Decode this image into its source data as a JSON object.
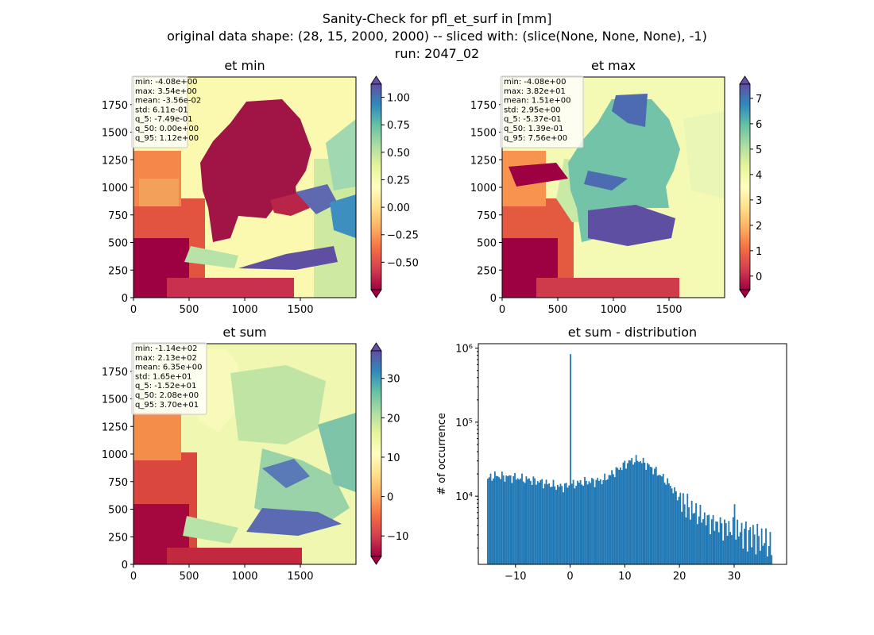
{
  "figure": {
    "title_lines": [
      "Sanity-Check for pfl_et_surf in [mm]",
      "original data shape: (28, 15, 2000, 2000) -- sliced with: (slice(None, None, None), -1)",
      "run: 2047_02"
    ]
  },
  "chart_data": [
    {
      "type": "heatmap",
      "title": "et min",
      "xlim": [
        0,
        2000
      ],
      "ylim": [
        0,
        2000
      ],
      "x_ticks": [
        "0",
        "500",
        "1000",
        "1500"
      ],
      "y_ticks": [
        "0",
        "250",
        "500",
        "750",
        "1000",
        "1250",
        "1500",
        "1750"
      ],
      "colormap": "Spectral",
      "colorbar_range": [
        -0.75,
        1.12
      ],
      "colorbar_ticks": [
        "−0.50",
        "−0.25",
        "0.00",
        "0.25",
        "0.50",
        "0.75",
        "1.00"
      ],
      "stats": [
        "min: -4.08e+00",
        "max: 3.54e+00",
        "mean: -3.56e-02",
        "std: 6.11e-01",
        "q_5: -7.49e-01",
        "q_50: 0.00e+00",
        "q_95: 1.12e+00"
      ]
    },
    {
      "type": "heatmap",
      "title": "et max",
      "xlim": [
        0,
        2000
      ],
      "ylim": [
        0,
        2000
      ],
      "x_ticks": [
        "0",
        "500",
        "1000",
        "1500"
      ],
      "y_ticks": [
        "0",
        "250",
        "500",
        "750",
        "1000",
        "1250",
        "1500",
        "1750"
      ],
      "colormap": "Spectral",
      "colorbar_range": [
        -0.537,
        7.56
      ],
      "colorbar_ticks": [
        "0",
        "1",
        "2",
        "3",
        "4",
        "5",
        "6",
        "7"
      ],
      "stats": [
        "min: -4.08e+00",
        "max: 3.82e+01",
        "mean: 1.51e+00",
        "std: 2.95e+00",
        "q_5: -5.37e-01",
        "q_50: 1.39e-01",
        "q_95: 7.56e+00"
      ]
    },
    {
      "type": "heatmap",
      "title": "et sum",
      "xlim": [
        0,
        2000
      ],
      "ylim": [
        0,
        2000
      ],
      "x_ticks": [
        "0",
        "500",
        "1000",
        "1500"
      ],
      "y_ticks": [
        "0",
        "250",
        "500",
        "750",
        "1000",
        "1250",
        "1500",
        "1750"
      ],
      "colormap": "Spectral",
      "colorbar_range": [
        -15.2,
        37.0
      ],
      "colorbar_ticks": [
        "−10",
        "0",
        "10",
        "20",
        "30"
      ],
      "stats": [
        "min: -1.14e+02",
        "max: 2.13e+02",
        "mean: 6.35e+00",
        "std: 1.65e+01",
        "q_5: -1.52e+01",
        "q_50: 2.08e+00",
        "q_95: 3.70e+01"
      ]
    },
    {
      "type": "bar",
      "title": "et sum - distribution",
      "ylabel": "# of occurrence",
      "yscale": "log",
      "xlim": [
        -16.8,
        39.6
      ],
      "ylim": [
        1200,
        1150000
      ],
      "x_ticks": [
        -10,
        0,
        10,
        20,
        30
      ],
      "x_tick_labels": [
        "−10",
        "0",
        "10",
        "20",
        "30"
      ],
      "y_ticks": [
        10000,
        100000,
        1000000
      ],
      "y_tick_labels": [
        "10⁴",
        "10⁵",
        "10⁶"
      ],
      "bar_color": "#1f77b4",
      "bin_range": [
        -15.2,
        37.0
      ],
      "bins": 200,
      "profile_x": [
        -15.2,
        -14,
        -10,
        -6,
        -2,
        0,
        2,
        6,
        8,
        10,
        11,
        12,
        13,
        14,
        16,
        18,
        20,
        22,
        24,
        26,
        28,
        30,
        32,
        34,
        36,
        37
      ],
      "profile_y": [
        17000,
        19000,
        18000,
        16000,
        13500,
        14000,
        15500,
        16500,
        21000,
        27000,
        30000,
        31000,
        30000,
        27000,
        21000,
        15000,
        9500,
        7000,
        5500,
        4500,
        4000,
        3600,
        3300,
        3000,
        2500,
        2200
      ],
      "spikes": [
        {
          "x": 0,
          "y": 830000
        },
        {
          "x": 30.2,
          "y": 7800
        }
      ]
    }
  ]
}
